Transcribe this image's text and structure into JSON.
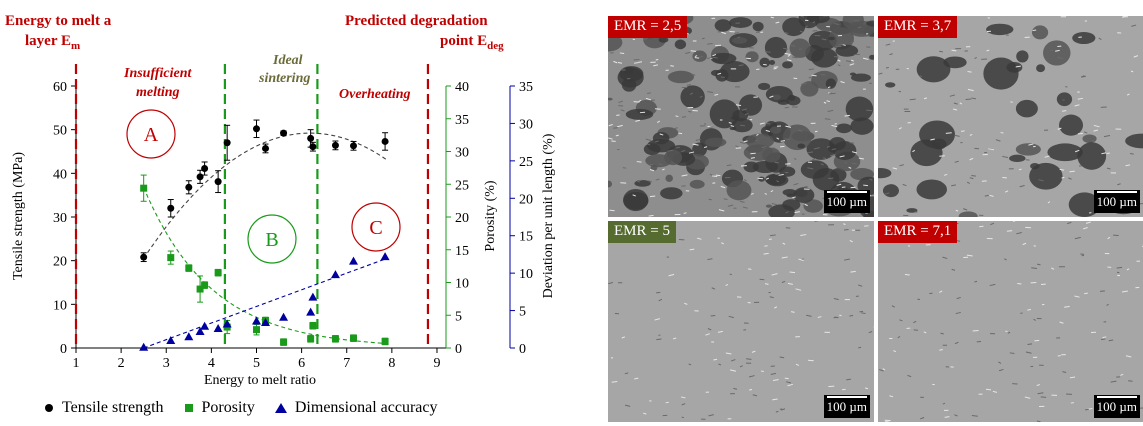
{
  "chart_data": {
    "type": "scatter",
    "xlabel": "Energy to melt ratio",
    "ylabel_left": "Tensile strength (MPa)",
    "ylabel_right1": "Porosity (%)",
    "ylabel_right2": "Deviation per unit length (%)",
    "xlim": [
      1,
      9.2
    ],
    "ylim_left": [
      0,
      60
    ],
    "ylim_right1": [
      0,
      40
    ],
    "ylim_right2": [
      0,
      35
    ],
    "x_ticks": [
      1,
      2,
      3,
      4,
      5,
      6,
      7,
      8,
      9
    ],
    "y_ticks_left": [
      0,
      10,
      20,
      30,
      40,
      50,
      60
    ],
    "y_ticks_right1": [
      0,
      5,
      10,
      15,
      20,
      25,
      30,
      35,
      40
    ],
    "y_ticks_right2": [
      0,
      5,
      10,
      15,
      20,
      25,
      30,
      35
    ],
    "series": [
      {
        "name": "Tensile strength",
        "color": "#000000",
        "marker": "circle",
        "axis": "left",
        "x": [
          2.5,
          3.1,
          3.5,
          3.75,
          3.85,
          4.15,
          4.35,
          5.0,
          5.2,
          5.6,
          6.2,
          6.25,
          6.75,
          7.15,
          7.85
        ],
        "y": [
          20.8,
          32.0,
          36.8,
          39.2,
          41.1,
          38.1,
          47.0,
          50.2,
          45.7,
          49.2,
          48.0,
          46.1,
          46.4,
          46.3,
          47.3
        ],
        "err": [
          1.0,
          2.0,
          1.5,
          1.5,
          1.5,
          2.5,
          4.0,
          2.0,
          1.0,
          0.5,
          2.0,
          1.0,
          1.0,
          1.0,
          2.0
        ]
      },
      {
        "name": "Porosity",
        "color": "#1a9a1a",
        "marker": "square",
        "axis": "right1",
        "x": [
          2.5,
          3.1,
          3.5,
          3.75,
          3.85,
          4.15,
          4.35,
          5.0,
          5.2,
          5.6,
          6.2,
          6.25,
          6.75,
          7.15,
          7.85
        ],
        "y": [
          24.4,
          13.8,
          12.2,
          9.0,
          9.6,
          11.5,
          3.2,
          2.8,
          4.2,
          0.9,
          1.4,
          3.4,
          1.4,
          1.5,
          1.0
        ],
        "err": [
          2.0,
          1.0,
          0.5,
          2.0,
          0.5,
          0.5,
          1.0,
          0.8,
          0.5,
          0.5,
          0.5,
          0.5,
          0.5,
          0.5,
          0.5
        ]
      },
      {
        "name": "Dimensional accuracy",
        "color": "#0000a0",
        "marker": "triangle",
        "axis": "right2",
        "x": [
          2.5,
          3.1,
          3.5,
          3.75,
          3.85,
          4.15,
          4.35,
          5.0,
          5.2,
          5.6,
          6.2,
          6.25,
          6.75,
          7.15,
          7.85
        ],
        "y": [
          0.1,
          1.0,
          1.5,
          2.2,
          2.9,
          2.6,
          3.2,
          3.6,
          3.4,
          4.1,
          4.8,
          6.8,
          9.8,
          11.6,
          12.2
        ]
      }
    ],
    "trend_lines": [
      {
        "axis": "left",
        "color": "#444444",
        "type": "quadratic",
        "from": 2.5,
        "to": 7.9,
        "points": [
          [
            2.5,
            20.5
          ],
          [
            5.8,
            48.9
          ],
          [
            7.9,
            43
          ]
        ]
      },
      {
        "axis": "right1",
        "color": "#1a9a1a",
        "type": "exponential",
        "from": 2.5,
        "to": 7.9,
        "points": [
          [
            2.5,
            24.5
          ],
          [
            4.5,
            6.5
          ],
          [
            7.9,
            1.1
          ]
        ]
      },
      {
        "axis": "right2",
        "color": "#0000a0",
        "type": "linear",
        "from": 2.5,
        "to": 7.9,
        "points": [
          [
            2.5,
            0.0
          ],
          [
            7.9,
            12.0
          ]
        ]
      }
    ],
    "vlines": [
      {
        "x": 1.0,
        "color": "#c00000",
        "style": "dashed"
      },
      {
        "x": 4.3,
        "color": "#1a9a1a",
        "style": "dashed"
      },
      {
        "x": 6.35,
        "color": "#1a9a1a",
        "style": "dashed"
      },
      {
        "x": 8.8,
        "color": "#c00000",
        "style": "dashed"
      }
    ],
    "grid": false,
    "legend_placement": "bottom"
  },
  "annotations": {
    "energy_melt_line1": "Energy to melt a",
    "energy_melt_line2": "layer E",
    "energy_melt_sub": "m",
    "degradation_line1": "Predicted degradation",
    "degradation_line2": "point E",
    "degradation_sub": "deg",
    "insufficient_line1": "Insufficient",
    "insufficient_line2": "melting",
    "ideal_line1": "Ideal",
    "ideal_line2": "sintering",
    "overheating": "Overheating",
    "region_a": "A",
    "region_b": "B",
    "region_c": "C"
  },
  "colors": {
    "red": "#c00000",
    "green": "#1a9a1a",
    "blue": "#0000a0",
    "olive": "#6b6b3a"
  },
  "micrographs": [
    {
      "label": "EMR = 2,5",
      "label_color": "#c00000",
      "scale": "100 µm",
      "porosity": "high"
    },
    {
      "label": "EMR = 3,7",
      "label_color": "#c00000",
      "scale": "100 µm",
      "porosity": "medium"
    },
    {
      "label": "EMR = 5",
      "label_color": "#556b2f",
      "scale": "100 µm",
      "porosity": "low"
    },
    {
      "label": "EMR = 7,1",
      "label_color": "#c00000",
      "scale": "100 µm",
      "porosity": "low"
    }
  ]
}
